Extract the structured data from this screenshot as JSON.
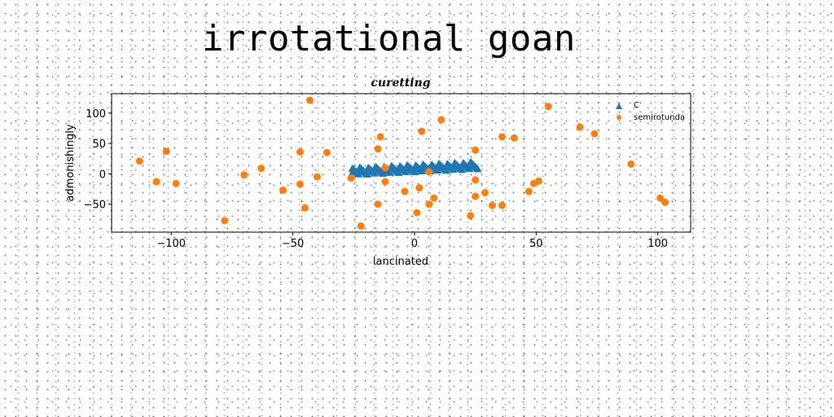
{
  "page": {
    "title": "irrotational goan"
  },
  "colors": {
    "series_c": "#1f77b4",
    "series_semirotunda": "#ff7f0e"
  },
  "chart_data": {
    "type": "scatter",
    "title": "curetting",
    "xlabel": "lancinated",
    "ylabel": "admonishingly",
    "xlim": [
      -124.5,
      113.5
    ],
    "ylim": [
      -96,
      132
    ],
    "xticks": [
      -100,
      -50,
      0,
      50,
      100
    ],
    "xtick_labels": [
      "−100",
      "−50",
      "0",
      "50",
      "100"
    ],
    "yticks": [
      -50,
      0,
      50,
      100
    ],
    "ytick_labels": [
      "−50",
      "0",
      "50",
      "100"
    ],
    "grid": false,
    "legend_position": "top-right",
    "series": [
      {
        "name": "C",
        "marker": "triangle",
        "color": "#1f77b4",
        "x_range": [
          -26,
          26
        ],
        "y_start": 4,
        "y_end": 14,
        "count": 105,
        "band_halfwidth": 6
      },
      {
        "name": "semirotunda",
        "marker": "circle",
        "color": "#ff7f0e",
        "points": [
          [
            -43,
            121
          ],
          [
            55,
            111
          ],
          [
            11,
            89
          ],
          [
            68,
            77
          ],
          [
            74,
            66
          ],
          [
            3,
            70
          ],
          [
            -14,
            61
          ],
          [
            36,
            61
          ],
          [
            41,
            59
          ],
          [
            -102,
            37
          ],
          [
            -47,
            36
          ],
          [
            -36,
            35
          ],
          [
            -15,
            41
          ],
          [
            25,
            39
          ],
          [
            -113,
            21
          ],
          [
            89,
            16
          ],
          [
            -63,
            9
          ],
          [
            -12,
            10
          ],
          [
            6,
            3
          ],
          [
            -70,
            -2
          ],
          [
            -40,
            -5
          ],
          [
            -26,
            -7
          ],
          [
            25,
            -10
          ],
          [
            -106,
            -13
          ],
          [
            -98,
            -16
          ],
          [
            -47,
            -17
          ],
          [
            -12,
            -13
          ],
          [
            49,
            -16
          ],
          [
            51,
            -12
          ],
          [
            2,
            -23
          ],
          [
            -54,
            -27
          ],
          [
            -4,
            -29
          ],
          [
            29,
            -31
          ],
          [
            47,
            -29
          ],
          [
            25,
            -37
          ],
          [
            8,
            -40
          ],
          [
            101,
            -40
          ],
          [
            103,
            -47
          ],
          [
            -15,
            -50
          ],
          [
            6,
            -50
          ],
          [
            32,
            -52
          ],
          [
            36,
            -52
          ],
          [
            -45,
            -56
          ],
          [
            1,
            -64
          ],
          [
            23,
            -69
          ],
          [
            -78,
            -77
          ],
          [
            -22,
            -86
          ]
        ]
      }
    ]
  }
}
